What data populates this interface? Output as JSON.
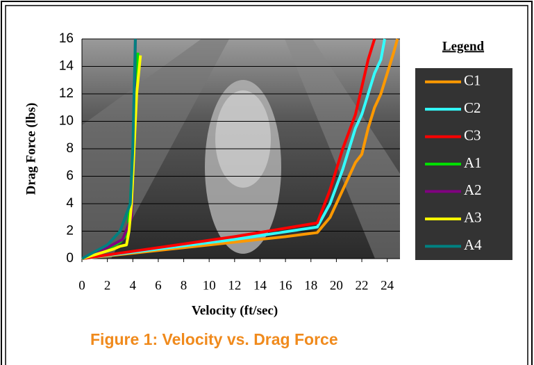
{
  "chart_data": {
    "type": "line",
    "caption": "Figure 1: Velocity vs. Drag Force",
    "x_label": "Velocity (ft/sec)",
    "y_label": "Drag Force (lbs)",
    "legend_title": "Legend",
    "xlim": [
      0,
      25
    ],
    "xticks": [
      0,
      2,
      4,
      6,
      8,
      10,
      12,
      14,
      16,
      18,
      20,
      22,
      24
    ],
    "ylim": [
      0,
      16
    ],
    "yticks": [
      0,
      2,
      4,
      6,
      8,
      10,
      12,
      14,
      16
    ],
    "grid": true,
    "legend": "right",
    "series": [
      {
        "name": "C1",
        "color": "#ff9900",
        "x": [
          0,
          4,
          10,
          16,
          18.5,
          19.5,
          20.5,
          21.5,
          22,
          22.5,
          23,
          23.5,
          24,
          24.5,
          24.8
        ],
        "values": [
          0,
          0.4,
          1,
          1.6,
          1.9,
          3,
          5,
          7,
          7.6,
          9.5,
          11,
          12,
          13.5,
          15,
          16
        ]
      },
      {
        "name": "C2",
        "color": "#33ffff",
        "x": [
          0,
          6,
          12,
          18.5,
          19.5,
          20.5,
          21,
          21.5,
          22,
          22.5,
          23,
          23.5,
          23.8
        ],
        "values": [
          0,
          0.7,
          1.4,
          2.3,
          4,
          6.5,
          8,
          9.5,
          10.5,
          12,
          13.5,
          14.5,
          16
        ]
      },
      {
        "name": "C3",
        "color": "#ff0000",
        "x": [
          0,
          6,
          12,
          18.5,
          19.5,
          20.5,
          21.5,
          22,
          22.5,
          23
        ],
        "values": [
          0,
          0.8,
          1.6,
          2.6,
          5,
          8,
          10.5,
          12.5,
          14.5,
          16
        ]
      },
      {
        "name": "A1",
        "color": "#00dd00",
        "x": [
          0,
          2,
          3,
          3.6,
          3.8,
          4,
          4.2,
          4.4
        ],
        "values": [
          0,
          0.7,
          1.2,
          1.8,
          4,
          8,
          12,
          15
        ]
      },
      {
        "name": "A2",
        "color": "#800080",
        "x": [
          0,
          2,
          3.2,
          3.9,
          4.1,
          4.2
        ],
        "values": [
          0,
          0.8,
          1.4,
          3,
          10,
          16
        ]
      },
      {
        "name": "A3",
        "color": "#ffff00",
        "x": [
          0,
          2.5,
          3,
          3.5,
          3.7,
          3.9,
          4.1,
          4.3,
          4.6
        ],
        "values": [
          0,
          0.7,
          0.9,
          1,
          2,
          4,
          8,
          12,
          14.8
        ]
      },
      {
        "name": "A4",
        "color": "#008080",
        "x": [
          0,
          2,
          3,
          3.8,
          4,
          4.1,
          4.2
        ],
        "values": [
          0,
          1,
          2,
          4,
          8,
          12,
          16
        ]
      }
    ]
  }
}
